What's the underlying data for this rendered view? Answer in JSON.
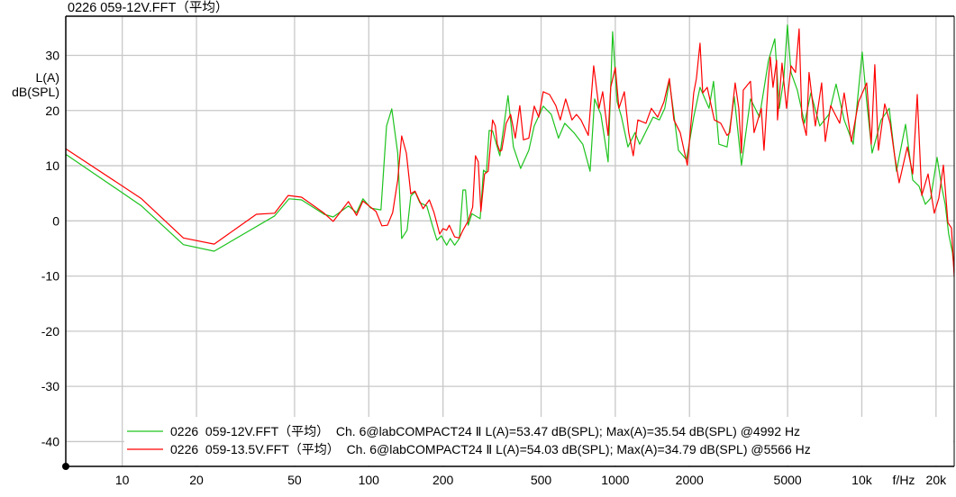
{
  "title": "0226  059-12V.FFT（平均）",
  "chart_data": {
    "type": "line",
    "title": "0226  059-12V.FFT（平均）",
    "ylabel_line1": "L(A)",
    "ylabel_line2": "dB(SPL)",
    "xlabel": "f/Hz",
    "xscale": "log",
    "xlim": [
      5.9,
      23700
    ],
    "ylim": [
      -44.5,
      37.1
    ],
    "grid": true,
    "legend_position": "bottom",
    "x_ticks": [
      10,
      20,
      50,
      100,
      200,
      500,
      1000,
      2000,
      5000,
      10000,
      20000
    ],
    "x_tick_labels": [
      "10",
      "20",
      "50",
      "100",
      "200",
      "500",
      "1000",
      "2000",
      "5000",
      "10k",
      "20k"
    ],
    "y_ticks": [
      30,
      20,
      10,
      0,
      -10,
      -20,
      -30,
      -40
    ],
    "y_tick_labels": [
      "30",
      "20",
      "10",
      "0",
      "-10",
      "-20",
      "-30",
      "-40"
    ],
    "series": [
      {
        "name": "0226  059-12V.FFT（平均）  Ch. 6@labCOMPACT24 Ⅱ L(A)=53.47 dB(SPL); Max(A)=35.54 dB(SPL) @4992 Hz",
        "color": "#1ec31e",
        "x": [
          5.89,
          11.9,
          17.7,
          23.6,
          41.5,
          47.5,
          53.4,
          65.9,
          71.7,
          82.7,
          89.2,
          94.7,
          102,
          112,
          118,
          124,
          131,
          136,
          143,
          148,
          154,
          161,
          172,
          181,
          189,
          197,
          207,
          214,
          223,
          233,
          241,
          247,
          253,
          262,
          283,
          292,
          300,
          308,
          318,
          340,
          367,
          386,
          413,
          446,
          469,
          510,
          550,
          588,
          624,
          679,
          738,
          790,
          824,
          874,
          935,
          975,
          1017,
          1060,
          1125,
          1203,
          1255,
          1365,
          1423,
          1510,
          1588,
          1657,
          1728,
          1803,
          1944,
          2080,
          2206,
          2400,
          2503,
          2633,
          2839,
          3037,
          3249,
          3534,
          3844,
          4182,
          4436,
          4627,
          4826,
          4992,
          5160,
          5474,
          5856,
          6211,
          6754,
          7350,
          7863,
          8481,
          9226,
          10040,
          10470,
          11010,
          11980,
          12920,
          13820,
          15040,
          16090,
          17060,
          18100,
          19030,
          20190,
          21060,
          21780,
          22520,
          23300,
          23700
        ],
        "y": [
          12.1,
          2.8,
          -4.3,
          -5.5,
          0.9,
          4.0,
          3.8,
          1.2,
          0.7,
          2.7,
          1.5,
          4.0,
          2.3,
          2.0,
          17.2,
          20.3,
          12.3,
          -3.2,
          -1.7,
          4.5,
          5.3,
          3.3,
          2.7,
          -0.8,
          -3.5,
          -2.7,
          -4.4,
          -3.2,
          -4.4,
          -3.2,
          5.6,
          5.6,
          -0.8,
          1.3,
          0.4,
          9.2,
          8.7,
          16.4,
          16.3,
          11.8,
          22.7,
          13.4,
          9.5,
          12.8,
          17.2,
          20.8,
          19.3,
          15.0,
          17.7,
          16.0,
          13.9,
          9.0,
          22.1,
          19.3,
          10.7,
          34.3,
          21.6,
          18.8,
          13.4,
          16.0,
          13.9,
          17.2,
          18.8,
          18.3,
          20.4,
          25.3,
          19.3,
          12.8,
          11.1,
          18.8,
          24.2,
          20.4,
          25.3,
          13.9,
          13.4,
          22.5,
          10.1,
          22.1,
          18.8,
          29.1,
          33.0,
          20.4,
          25.8,
          35.5,
          26.9,
          23.7,
          17.7,
          23.2,
          17.2,
          19.3,
          24.8,
          18.3,
          13.9,
          30.6,
          21.6,
          12.3,
          18.3,
          20.4,
          9.0,
          17.5,
          7.4,
          6.3,
          3.0,
          4.1,
          11.5,
          6.3,
          3.0,
          -2.4,
          -5.7,
          -8.9
        ]
      },
      {
        "name": "0226  059-13.5V.FFT（平均）  Ch. 6@labCOMPACT24 Ⅱ L(A)=54.03 dB(SPL); Max(A)=34.79 dB(SPL) @5566 Hz",
        "color": "#ff0000",
        "x": [
          5.89,
          11.9,
          17.7,
          23.6,
          35.0,
          41.5,
          47.1,
          53.4,
          65.9,
          71.7,
          82.7,
          89.2,
          94.7,
          107,
          113,
          119,
          125,
          131,
          136,
          142,
          148,
          154,
          166,
          176,
          184,
          194,
          200,
          207,
          212,
          223,
          233,
          241,
          253,
          264,
          271,
          278,
          285,
          295,
          305,
          318,
          326,
          332,
          340,
          346,
          361,
          376,
          393,
          410,
          424,
          446,
          469,
          489,
          510,
          541,
          574,
          598,
          629,
          667,
          696,
          726,
          777,
          817,
          859,
          889,
          935,
          958,
          1000,
          1034,
          1088,
          1134,
          1183,
          1234,
          1331,
          1400,
          1485,
          1575,
          1657,
          1728,
          1833,
          1960,
          2080,
          2133,
          2206,
          2262,
          2360,
          2523,
          2677,
          2839,
          2912,
          3063,
          3168,
          3249,
          3304,
          3534,
          3656,
          3909,
          4010,
          4182,
          4253,
          4362,
          4511,
          4549,
          4745,
          4949,
          5160,
          5383,
          5566,
          5710,
          5955,
          6107,
          6477,
          6871,
          7107,
          7475,
          8134,
          8481,
          9073,
          9705,
          10470,
          10920,
          11290,
          11680,
          12390,
          13030,
          13590,
          14170,
          15290,
          16090,
          16780,
          17500,
          18560,
          19680,
          20530,
          21420,
          22340,
          23100,
          23700
        ],
        "y": [
          13.1,
          4.1,
          -3.1,
          -4.2,
          1.2,
          1.4,
          4.6,
          4.3,
          1.4,
          -0.1,
          3.5,
          1.0,
          3.6,
          1.7,
          -0.9,
          -0.8,
          1.5,
          7.4,
          15.4,
          12.3,
          4.9,
          5.4,
          2.2,
          3.8,
          1.5,
          -2.4,
          -1.4,
          -1.7,
          -0.8,
          -2.9,
          -3.1,
          -1.7,
          0.0,
          2.5,
          11.8,
          10.7,
          1.7,
          8.5,
          9.0,
          18.3,
          17.2,
          13.9,
          12.6,
          12.8,
          17.7,
          19.3,
          15.0,
          20.9,
          14.7,
          15.0,
          20.8,
          18.8,
          23.4,
          22.9,
          20.9,
          18.3,
          22.1,
          18.3,
          19.3,
          18.3,
          15.5,
          28.1,
          20.4,
          23.4,
          15.5,
          24.2,
          27.8,
          20.4,
          23.4,
          16.0,
          11.8,
          18.3,
          17.7,
          20.4,
          18.8,
          21.6,
          25.8,
          18.3,
          16.0,
          10.1,
          23.2,
          25.8,
          32.2,
          23.2,
          24.2,
          18.3,
          17.7,
          15.5,
          16.0,
          25.0,
          20.4,
          12.3,
          23.7,
          25.3,
          16.0,
          20.4,
          12.8,
          25.8,
          29.7,
          24.2,
          29.1,
          18.3,
          28.6,
          20.4,
          28.1,
          26.9,
          34.8,
          18.8,
          15.5,
          26.9,
          17.2,
          25.0,
          14.4,
          20.9,
          17.7,
          23.2,
          14.4,
          21.6,
          25.0,
          13.9,
          28.3,
          12.8,
          21.2,
          17.7,
          11.8,
          6.9,
          13.4,
          8.5,
          22.9,
          4.6,
          8.5,
          1.4,
          4.1,
          10.1,
          -0.3,
          -1.3,
          -10.1
        ]
      }
    ]
  }
}
